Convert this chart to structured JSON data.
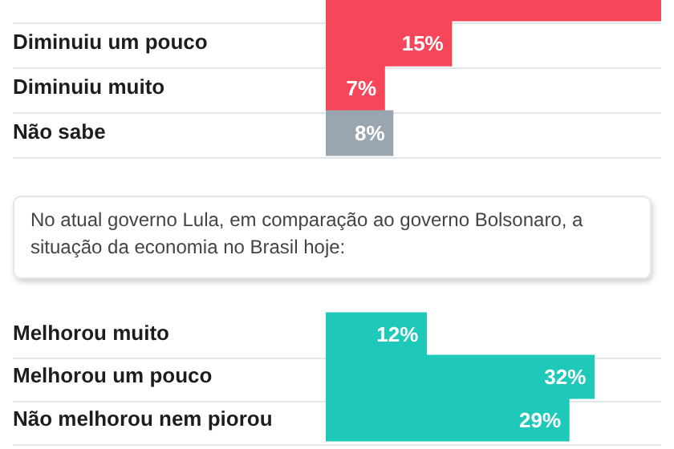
{
  "chart_data": [
    {
      "type": "bar",
      "orientation": "horizontal",
      "categories": [
        null,
        "Diminuiu um pouco",
        "Diminuiu muito",
        "Não sabe"
      ],
      "values": [
        40,
        15,
        7,
        8
      ],
      "colors": [
        "#f6465a",
        "#f6465a",
        "#f6465a",
        "#9aa6af"
      ],
      "value_labels": [
        null,
        "15%",
        "7%",
        "8%"
      ],
      "xlim": [
        0,
        40
      ],
      "tick_labels": "y",
      "grid": "y"
    },
    {
      "type": "bar",
      "orientation": "horizontal",
      "title": "No atual governo Lula, em comparação ao governo Bolsonaro, a situação da economia no Brasil hoje:",
      "categories": [
        "Melhorou muito",
        "Melhorou um pouco",
        "Não melhorou nem piorou"
      ],
      "values": [
        12,
        32,
        29
      ],
      "color": "#1fc9b9",
      "value_labels": [
        "12%",
        "32%",
        "29%"
      ],
      "xlim": [
        0,
        40
      ],
      "tick_labels": "y",
      "grid": "y"
    }
  ]
}
